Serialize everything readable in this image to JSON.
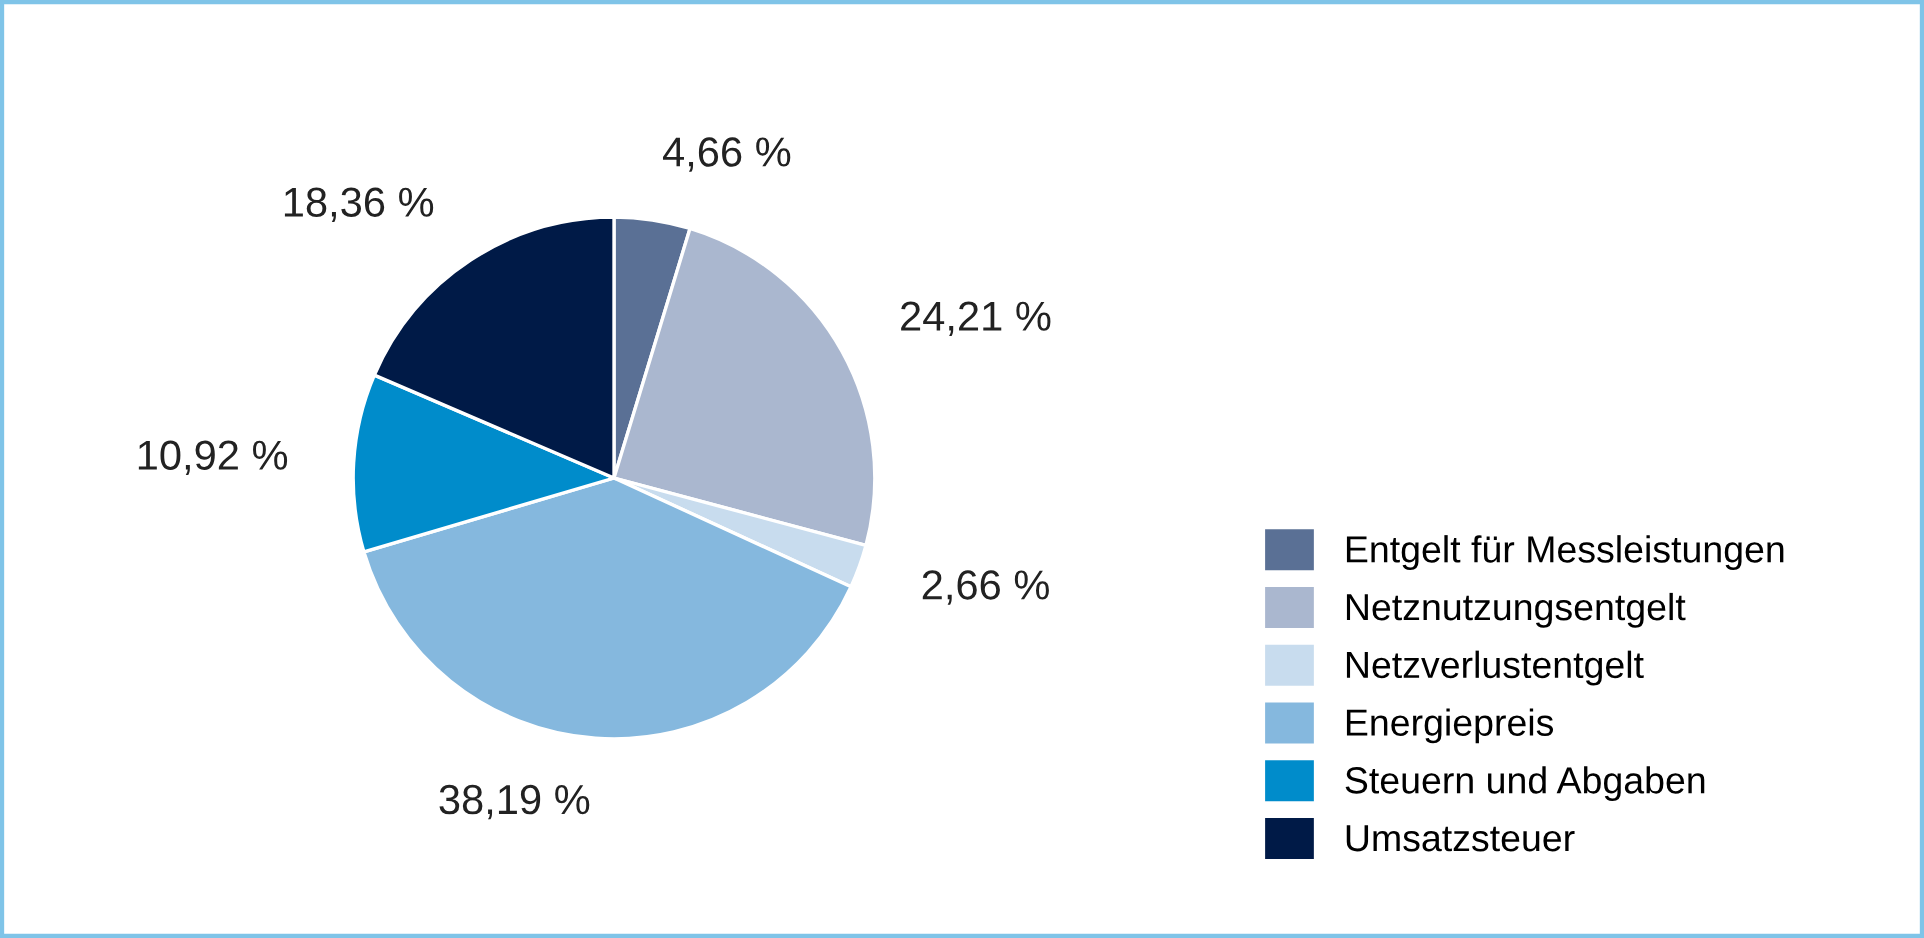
{
  "chart_data": {
    "type": "pie",
    "categories": [
      "Entgelt für Messleistungen",
      "Netznutzungsentgelt",
      "Netzverlustentgelt",
      "Energiepreis",
      "Steuern und Abgaben",
      "Umsatzsteuer"
    ],
    "values": [
      4.66,
      24.21,
      2.66,
      38.19,
      10.92,
      18.36
    ],
    "value_labels": [
      "4,66 %",
      "24,21 %",
      "2,66 %",
      "38,19 %",
      "10,92 %",
      "18,36 %"
    ],
    "colors": [
      "#5a7095",
      "#aab7cf",
      "#c8dcee",
      "#85b8de",
      "#008ccb",
      "#001a47"
    ],
    "legend": "right"
  }
}
